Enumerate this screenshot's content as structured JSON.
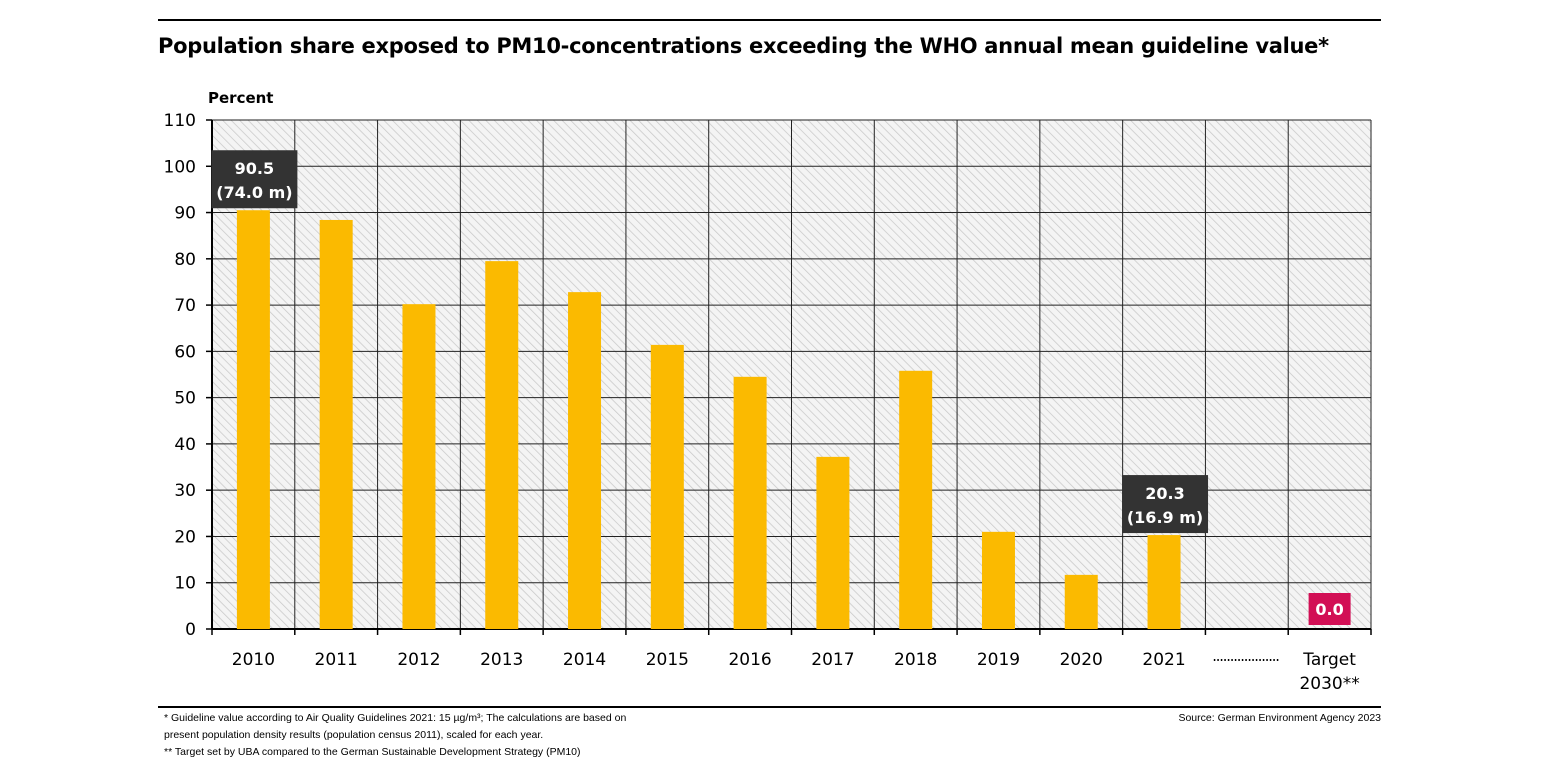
{
  "chart_data": {
    "type": "bar",
    "title": "Population share exposed to PM10-concentrations exceeding the WHO annual mean guideline value*",
    "ylabel": "Percent",
    "xlabel": "",
    "ylim": [
      0,
      110
    ],
    "yticks": [
      0,
      10,
      20,
      30,
      40,
      50,
      60,
      70,
      80,
      90,
      100,
      110
    ],
    "grid": true,
    "categories": [
      "2010",
      "2011",
      "2012",
      "2013",
      "2014",
      "2015",
      "2016",
      "2017",
      "2018",
      "2019",
      "2020",
      "2021",
      "……………",
      "Target 2030**"
    ],
    "values": [
      90.5,
      88.4,
      70.2,
      79.5,
      72.8,
      61.4,
      54.5,
      37.2,
      55.8,
      21.0,
      11.7,
      20.3,
      null,
      0.0
    ],
    "annotations": [
      {
        "category": "2010",
        "line1": "90.5",
        "line2": "(74.0 m)"
      },
      {
        "category": "2021",
        "line1": "20.3",
        "line2": "(16.9 m)"
      },
      {
        "category": "Target 2030**",
        "line1": "0.0",
        "line2": ""
      }
    ],
    "colors": {
      "bar": "#fbba00",
      "label_box": "#333333",
      "target_box": "#d20f55",
      "hatch": "#c8c8c8"
    }
  },
  "footnotes": [
    "* Guideline value according to Air Quality Guidelines 2021: 15 µg/m³; The calculations are based on",
    "present population density results (population census 2011), scaled for each year.",
    "** Target set by UBA compared to the German Sustainable Development Strategy (PM10)"
  ],
  "source": "Source: German Environment Agency 2023"
}
